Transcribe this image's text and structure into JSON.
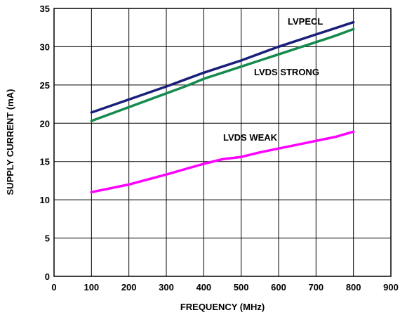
{
  "chart_data": {
    "type": "line",
    "xlabel": "FREQUENCY (MHz)",
    "ylabel": "SUPPLY CURRENT (mA)",
    "xlim": [
      0,
      900
    ],
    "ylim": [
      0,
      35
    ],
    "xticks": [
      0,
      100,
      200,
      300,
      400,
      500,
      600,
      700,
      800,
      900
    ],
    "yticks": [
      0,
      5,
      10,
      15,
      20,
      25,
      30,
      35
    ],
    "grid": true,
    "legend": "inline labels",
    "series": [
      {
        "name": "LVPECL",
        "color": "#1a1f7a",
        "x": [
          100,
          200,
          300,
          350,
          400,
          450,
          500,
          550,
          600,
          650,
          700,
          750,
          800
        ],
        "y": [
          21.4,
          23.1,
          24.8,
          25.7,
          26.6,
          27.4,
          28.2,
          29.1,
          30.0,
          30.8,
          31.6,
          32.4,
          33.2
        ]
      },
      {
        "name": "LVDS STRONG",
        "color": "#148a4e",
        "x": [
          100,
          200,
          300,
          350,
          400,
          450,
          500,
          550,
          600,
          650,
          700,
          750,
          800
        ],
        "y": [
          20.3,
          22.1,
          23.9,
          24.8,
          25.8,
          26.6,
          27.4,
          28.2,
          29.0,
          29.8,
          30.6,
          31.4,
          32.3
        ]
      },
      {
        "name": "LVDS WEAK",
        "color": "#ff00ff",
        "x": [
          100,
          200,
          300,
          350,
          400,
          450,
          500,
          550,
          600,
          650,
          700,
          750,
          800
        ],
        "y": [
          11.0,
          12.0,
          13.3,
          14.0,
          14.7,
          15.3,
          15.6,
          16.2,
          16.7,
          17.2,
          17.7,
          18.2,
          18.9
        ]
      }
    ]
  }
}
